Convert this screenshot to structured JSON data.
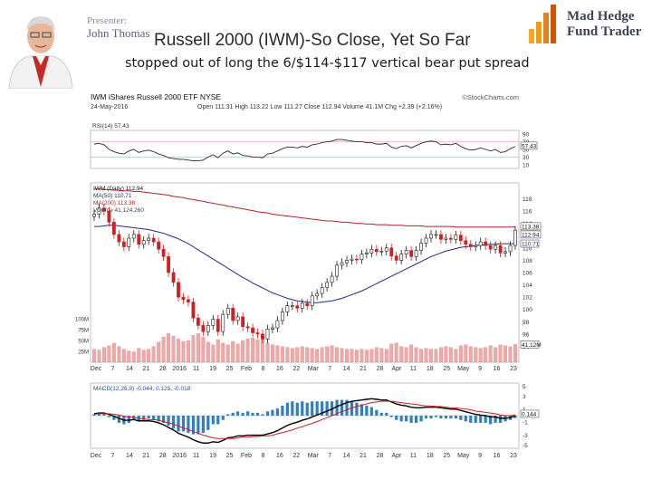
{
  "presenter": {
    "label": "Presenter:",
    "name": "John Thomas"
  },
  "slide": {
    "title": "Russell 2000 (IWM)-So Close, Yet So Far",
    "subtitle": "stopped out of long the 6/$114-$117 vertical bear put spread"
  },
  "logo": {
    "line1": "Mad Hedge",
    "line2": "Fund Trader"
  },
  "colors": {
    "price_up": "#1a1a1a",
    "price_down": "#d21e1e",
    "ma50": "#1e2a8c",
    "ma200": "#b82020",
    "macd_line": "#000000",
    "signal_line": "#d21e1e",
    "histogram": "#2f7fc1",
    "rsi": "#2a2a2a",
    "volume": "#f0a9a9"
  },
  "chart_data": {
    "type": "line",
    "title": "IWM iShares Russell 2000 ETF NYSE",
    "source": "©StockCharts.com",
    "date": "24-May-2016",
    "quote": "Open 111.31  High 113.22  Low 111.27  Close 112.94  Volume 41.1M  Chg +2.39 (+2.16%)",
    "rsi_legend": "RSI(14) 57.43",
    "rsi_value": "57.43",
    "rsi_ticks": [
      "90",
      "70",
      "50",
      "30",
      "10"
    ],
    "price_legend": [
      "IWM (Daily) 112.94",
      "MA(50) 110.71",
      "MA(200) 113.38",
      "Volume 41,124,260"
    ],
    "price_ticks": [
      "118",
      "116",
      "114",
      "112",
      "110",
      "108",
      "106",
      "104",
      "102",
      "100",
      "98",
      "96",
      "94"
    ],
    "price_last_label": "112.94",
    "ma_last_label": "113.38",
    "ma50_last_label": "110.71",
    "volume_ticks": [
      "100M",
      "75M",
      "50M",
      "25M"
    ],
    "volume_last_label": "41.12M",
    "x_labels": [
      "Dec",
      "7",
      "14",
      "21",
      "28",
      "2016",
      "11",
      "19",
      "25",
      "Feb",
      "8",
      "16",
      "22",
      "Mar",
      "7",
      "14",
      "21",
      "28",
      "Apr",
      "11",
      "18",
      "25",
      "May",
      "9",
      "16",
      "23"
    ],
    "macd_legend": "MACD(12,26,9) -0.044, 0.125, -0.018",
    "macd_ticks": [
      "5",
      "3",
      "1",
      "-1",
      "-3",
      "-5"
    ],
    "macd_last_label": "0.144",
    "ylim_price": [
      92,
      120
    ],
    "ylim_rsi": [
      0,
      100
    ],
    "ylim_macd": [
      -5,
      5
    ],
    "series": [
      {
        "name": "IWM close",
        "values": [
          115.5,
          116.5,
          116.0,
          114.2,
          112.2,
          111.0,
          110.2,
          111.6,
          112.2,
          110.6,
          111.2,
          111.6,
          111.0,
          109.8,
          108.6,
          106.0,
          104.4,
          102.0,
          101.6,
          101.2,
          98.6,
          97.4,
          96.4,
          97.4,
          98.4,
          96.4,
          99.2,
          100.2,
          98.2,
          98.8,
          97.2,
          97.0,
          96.2,
          96.0,
          95.2,
          96.8,
          97.0,
          98.2,
          99.6,
          100.6,
          100.6,
          100.2,
          101.0,
          100.6,
          102.2,
          102.6,
          103.6,
          104.4,
          105.4,
          107.2,
          107.6,
          108.0,
          108.2,
          108.1,
          109.0,
          109.2,
          109.8,
          109.4,
          109.5,
          110.0,
          108.7,
          108.0,
          109.0,
          109.6,
          108.6,
          109.6,
          110.8,
          111.6,
          112.2,
          112.2,
          111.4,
          111.6,
          111.4,
          112.1,
          111.2,
          110.6,
          110.2,
          110.4,
          111.0,
          110.4,
          109.8,
          110.4,
          109.2,
          109.4,
          110.4,
          112.9
        ]
      },
      {
        "name": "MA(50)",
        "values": [
          113.5,
          113.5,
          113.6,
          113.7,
          113.7,
          113.6,
          113.5,
          113.4,
          113.3,
          113.2,
          113.1,
          113.0,
          112.8,
          112.6,
          112.4,
          112.1,
          111.8,
          111.5,
          111.1,
          110.7,
          110.2,
          109.7,
          109.2,
          108.7,
          108.2,
          107.7,
          107.2,
          106.7,
          106.2,
          105.7,
          105.2,
          104.8,
          104.3,
          103.9,
          103.5,
          103.1,
          102.7,
          102.4,
          102.1,
          101.8,
          101.6,
          101.4,
          101.3,
          101.2,
          101.1,
          101.1,
          101.2,
          101.3,
          101.4,
          101.6,
          101.8,
          102.1,
          102.4,
          102.7,
          103.0,
          103.4,
          103.8,
          104.2,
          104.6,
          105.0,
          105.4,
          105.8,
          106.2,
          106.6,
          107.0,
          107.4,
          107.8,
          108.2,
          108.6,
          108.9,
          109.2,
          109.5,
          109.7,
          109.9,
          110.1,
          110.2,
          110.3,
          110.4,
          110.5,
          110.5,
          110.6,
          110.6,
          110.7,
          110.7,
          110.7,
          110.7
        ]
      },
      {
        "name": "MA(200)",
        "values": [
          119.6,
          119.6,
          119.5,
          119.5,
          119.4,
          119.4,
          119.3,
          119.3,
          119.2,
          119.2,
          119.1,
          119.0,
          118.9,
          118.8,
          118.7,
          118.6,
          118.4,
          118.3,
          118.2,
          118.0,
          117.9,
          117.7,
          117.6,
          117.4,
          117.3,
          117.1,
          117.0,
          116.8,
          116.7,
          116.5,
          116.4,
          116.2,
          116.1,
          115.9,
          115.8,
          115.7,
          115.5,
          115.4,
          115.3,
          115.2,
          115.1,
          115.0,
          114.9,
          114.8,
          114.7,
          114.6,
          114.5,
          114.4,
          114.4,
          114.3,
          114.2,
          114.2,
          114.1,
          114.0,
          114.0,
          113.9,
          113.9,
          113.8,
          113.8,
          113.8,
          113.7,
          113.7,
          113.7,
          113.6,
          113.6,
          113.6,
          113.6,
          113.5,
          113.5,
          113.5,
          113.5,
          113.5,
          113.5,
          113.4,
          113.4,
          113.4,
          113.4,
          113.4,
          113.4,
          113.4,
          113.4,
          113.4,
          113.4,
          113.4,
          113.4,
          113.4
        ]
      },
      {
        "name": "RSI(14)",
        "values": [
          64,
          66,
          62,
          50,
          44,
          40,
          38,
          46,
          50,
          42,
          46,
          48,
          44,
          38,
          34,
          28,
          26,
          24,
          24,
          22,
          20,
          20,
          22,
          30,
          36,
          28,
          40,
          46,
          38,
          41,
          34,
          33,
          30,
          30,
          28,
          38,
          40,
          46,
          52,
          56,
          56,
          54,
          58,
          56,
          62,
          64,
          68,
          70,
          72,
          76,
          76,
          74,
          72,
          70,
          70,
          68,
          68,
          64,
          64,
          66,
          56,
          52,
          58,
          60,
          54,
          60,
          66,
          70,
          72,
          70,
          62,
          64,
          62,
          66,
          58,
          52,
          48,
          50,
          54,
          50,
          46,
          50,
          42,
          44,
          52,
          57.4
        ]
      },
      {
        "name": "Volume (M)",
        "values": [
          30,
          28,
          34,
          38,
          44,
          36,
          30,
          26,
          24,
          32,
          28,
          30,
          36,
          46,
          58,
          66,
          60,
          54,
          48,
          50,
          62,
          66,
          58,
          46,
          40,
          52,
          44,
          40,
          48,
          42,
          50,
          54,
          56,
          52,
          60,
          44,
          40,
          38,
          36,
          34,
          32,
          34,
          36,
          34,
          32,
          30,
          34,
          36,
          38,
          34,
          32,
          30,
          30,
          28,
          30,
          28,
          30,
          34,
          32,
          30,
          42,
          44,
          36,
          34,
          40,
          34,
          30,
          32,
          30,
          30,
          34,
          36,
          34,
          30,
          38,
          40,
          36,
          34,
          32,
          34,
          38,
          34,
          40,
          38,
          36,
          41.1
        ]
      },
      {
        "name": "MACD",
        "values": [
          0.3,
          0.4,
          0.4,
          0.2,
          -0.1,
          -0.4,
          -0.7,
          -0.7,
          -0.6,
          -0.8,
          -0.8,
          -0.8,
          -0.9,
          -1.1,
          -1.4,
          -1.8,
          -2.2,
          -2.7,
          -3.0,
          -3.3,
          -3.7,
          -4.0,
          -4.2,
          -4.2,
          -4.0,
          -4.1,
          -3.8,
          -3.4,
          -3.3,
          -3.1,
          -3.1,
          -3.0,
          -3.0,
          -3.0,
          -3.0,
          -2.8,
          -2.6,
          -2.3,
          -1.9,
          -1.5,
          -1.2,
          -1.0,
          -0.7,
          -0.5,
          -0.2,
          0.1,
          0.4,
          0.7,
          1.0,
          1.4,
          1.7,
          2.0,
          2.2,
          2.3,
          2.4,
          2.5,
          2.6,
          2.5,
          2.4,
          2.4,
          2.1,
          1.8,
          1.6,
          1.5,
          1.3,
          1.2,
          1.2,
          1.3,
          1.3,
          1.3,
          1.2,
          1.1,
          1.0,
          1.0,
          0.8,
          0.6,
          0.4,
          0.2,
          0.1,
          0.0,
          -0.2,
          -0.2,
          -0.4,
          -0.4,
          -0.3,
          -0.04
        ]
      },
      {
        "name": "Signal",
        "values": [
          0.2,
          0.3,
          0.3,
          0.3,
          0.2,
          0.1,
          -0.1,
          -0.2,
          -0.3,
          -0.4,
          -0.5,
          -0.6,
          -0.6,
          -0.7,
          -0.9,
          -1.1,
          -1.3,
          -1.6,
          -1.9,
          -2.1,
          -2.4,
          -2.7,
          -3.0,
          -3.2,
          -3.4,
          -3.5,
          -3.5,
          -3.5,
          -3.5,
          -3.4,
          -3.3,
          -3.3,
          -3.2,
          -3.2,
          -3.1,
          -3.1,
          -3.0,
          -2.8,
          -2.6,
          -2.4,
          -2.2,
          -1.9,
          -1.7,
          -1.4,
          -1.2,
          -0.9,
          -0.6,
          -0.3,
          0.0,
          0.3,
          0.6,
          0.9,
          1.2,
          1.4,
          1.6,
          1.8,
          2.0,
          2.1,
          2.2,
          2.2,
          2.2,
          2.1,
          2.0,
          1.9,
          1.8,
          1.7,
          1.6,
          1.5,
          1.5,
          1.4,
          1.4,
          1.3,
          1.2,
          1.2,
          1.1,
          1.0,
          0.9,
          0.7,
          0.6,
          0.5,
          0.4,
          0.3,
          0.1,
          0.0,
          0.0,
          0.125
        ]
      }
    ]
  }
}
